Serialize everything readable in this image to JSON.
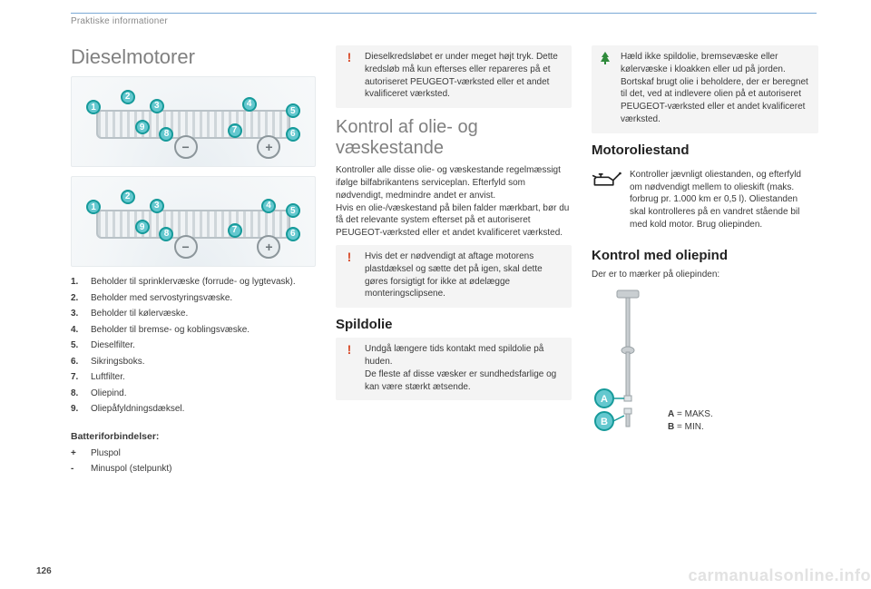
{
  "colors": {
    "accent_teal": "#169a9a",
    "accent_teal_inner": "#64c8cf",
    "marker_text": "#ffffff",
    "heading_gray": "#808080",
    "breadcrumb_gray": "#8a8a8a",
    "body_text": "#3a3a3a",
    "top_rule": "#7aa9d6",
    "callout_bg": "#f4f4f4",
    "warn_red": "#d84b2a",
    "eco_green": "#2f8a3b",
    "watermark": "#e2e2e2"
  },
  "breadcrumb": "Praktiske informationer",
  "page_number": "126",
  "watermark": "carmanualsonline.info",
  "col1": {
    "title": "Dieselmotorer",
    "fig1_markers": [
      {
        "n": "1",
        "x": 6,
        "y": 26
      },
      {
        "n": "2",
        "x": 20,
        "y": 14
      },
      {
        "n": "3",
        "x": 32,
        "y": 24
      },
      {
        "n": "9",
        "x": 26,
        "y": 48
      },
      {
        "n": "8",
        "x": 36,
        "y": 56
      },
      {
        "n": "4",
        "x": 70,
        "y": 22
      },
      {
        "n": "7",
        "x": 64,
        "y": 52
      },
      {
        "n": "5",
        "x": 88,
        "y": 30
      },
      {
        "n": "6",
        "x": 88,
        "y": 56
      }
    ],
    "fig2_markers": [
      {
        "n": "1",
        "x": 6,
        "y": 26
      },
      {
        "n": "2",
        "x": 20,
        "y": 14
      },
      {
        "n": "3",
        "x": 32,
        "y": 24
      },
      {
        "n": "9",
        "x": 26,
        "y": 48
      },
      {
        "n": "8",
        "x": 36,
        "y": 56
      },
      {
        "n": "7",
        "x": 64,
        "y": 52
      },
      {
        "n": "4",
        "x": 78,
        "y": 24
      },
      {
        "n": "5",
        "x": 88,
        "y": 30
      },
      {
        "n": "6",
        "x": 88,
        "y": 56
      }
    ],
    "legend": [
      {
        "n": "1.",
        "t": "Beholder til sprinklervæske (forrude- og lygtevask)."
      },
      {
        "n": "2.",
        "t": "Beholder med servostyringsvæske."
      },
      {
        "n": "3.",
        "t": "Beholder til kølervæske."
      },
      {
        "n": "4.",
        "t": "Beholder til bremse- og koblingsvæske."
      },
      {
        "n": "5.",
        "t": "Dieselfilter."
      },
      {
        "n": "6.",
        "t": "Sikringsboks."
      },
      {
        "n": "7.",
        "t": "Luftfilter."
      },
      {
        "n": "8.",
        "t": "Oliepind."
      },
      {
        "n": "9.",
        "t": "Oliepåfyldningsdæksel."
      }
    ],
    "battery_head": "Batteriforbindelser:",
    "battery": [
      {
        "n": "+",
        "t": "Pluspol"
      },
      {
        "n": "-",
        "t": "Minuspol (stelpunkt)"
      }
    ]
  },
  "col2": {
    "warn1": "Dieselkredsløbet er under meget højt tryk. Dette kredsløb må kun efterses eller repareres på et autoriseret PEUGEOT-værksted eller et andet kvalificeret værksted.",
    "h_levels": "Kontrol af olie- og væskestande",
    "p_levels": "Kontroller alle disse olie- og væskestande regelmæssigt ifølge bilfabrikantens serviceplan. Efterfyld som nødvendigt, medmindre andet er anvist.\nHvis en olie-/væskestand på bilen falder mærkbart, bør du få det relevante system efterset på et autoriseret PEUGEOT-værksted eller et andet kvalificeret værksted.",
    "warn2": "Hvis det er nødvendigt at aftage motorens plastdæksel og sætte det på igen, skal dette gøres forsigtigt for ikke at ødelægge monteringsclipsene.",
    "h_spild": "Spildolie",
    "warn3": "Undgå længere tids kontakt med spildolie på huden.\nDe fleste af disse væsker er sundhedsfarlige og kan være stærkt ætsende."
  },
  "col3": {
    "eco": "Hæld ikke spildolie, bremsevæske eller kølervæske i kloakken eller ud på jorden. Bortskaf brugt olie i beholdere, der er beregnet til det, ved at indlevere olien på et autoriseret PEUGEOT-værksted eller et andet kvalificeret værksted.",
    "h_motorolie": "Motoroliestand",
    "oil_text": "Kontroller jævnligt oliestanden, og efterfyld om nødvendigt mellem to olieskift (maks. forbrug pr. 1.000 km er 0,5 l). Oliestanden skal kontrolleres på en vandret stående bil med kold motor. Brug oliepinden.",
    "h_oliepind": "Kontrol med oliepind",
    "p_oliepind": "Der er to mærker på oliepinden:",
    "dip_a_label": "A",
    "dip_a_val": " = MAKS.",
    "dip_b_label": "B",
    "dip_b_val": " = MIN."
  }
}
